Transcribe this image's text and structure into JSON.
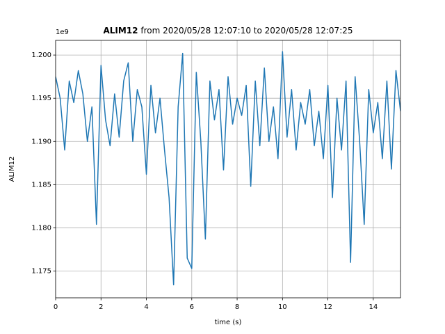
{
  "chart_data": {
    "type": "line",
    "title": {
      "name": "ALIM12",
      "range": "from 2020/05/28 12:07:10 to 2020/05/28 12:07:25"
    },
    "xlabel": "time (s)",
    "ylabel": "ALIM12",
    "y_offset_label": "1e9",
    "xlim": [
      0,
      15.2
    ],
    "ylim": [
      1.1719,
      1.2017
    ],
    "xticks": [
      0,
      2,
      4,
      6,
      8,
      10,
      12,
      14
    ],
    "yticks": [
      {
        "value": 1.175,
        "label": "1.175"
      },
      {
        "value": 1.18,
        "label": "1.180"
      },
      {
        "value": 1.185,
        "label": "1.185"
      },
      {
        "value": 1.19,
        "label": "1.190"
      },
      {
        "value": 1.195,
        "label": "1.195"
      },
      {
        "value": 1.2,
        "label": "1.200"
      }
    ],
    "grid": true,
    "x": [
      0,
      0.2,
      0.4,
      0.6,
      0.8,
      1.0,
      1.2,
      1.4,
      1.6,
      1.8,
      2.0,
      2.2,
      2.4,
      2.6,
      2.8,
      3.0,
      3.2,
      3.4,
      3.6,
      3.8,
      4.0,
      4.2,
      4.4,
      4.6,
      4.8,
      5.0,
      5.2,
      5.4,
      5.6,
      5.8,
      6.0,
      6.2,
      6.4,
      6.6,
      6.8,
      7.0,
      7.2,
      7.4,
      7.6,
      7.8,
      8.0,
      8.2,
      8.4,
      8.6,
      8.8,
      9.0,
      9.2,
      9.4,
      9.6,
      9.8,
      10.0,
      10.2,
      10.4,
      10.6,
      10.8,
      11.0,
      11.2,
      11.4,
      11.6,
      11.8,
      12.0,
      12.2,
      12.4,
      12.6,
      12.8,
      13.0,
      13.2,
      13.4,
      13.6,
      13.8,
      14.0,
      14.2,
      14.4,
      14.6,
      14.8,
      15.0,
      15.2
    ],
    "series": [
      {
        "name": "ALIM12",
        "color": "#1f77b4",
        "values": [
          1.1975,
          1.195,
          1.189,
          1.197,
          1.1945,
          1.1982,
          1.1955,
          1.19,
          1.194,
          1.1804,
          1.1988,
          1.1925,
          1.1895,
          1.1955,
          1.1905,
          1.197,
          1.1991,
          1.19,
          1.196,
          1.194,
          1.1862,
          1.1965,
          1.191,
          1.195,
          1.189,
          1.1835,
          1.1734,
          1.194,
          1.2002,
          1.1765,
          1.1753,
          1.198,
          1.19,
          1.1787,
          1.197,
          1.1925,
          1.196,
          1.1867,
          1.1975,
          1.192,
          1.195,
          1.193,
          1.1965,
          1.1848,
          1.197,
          1.1895,
          1.1985,
          1.19,
          1.194,
          1.188,
          1.2004,
          1.1905,
          1.196,
          1.189,
          1.1945,
          1.192,
          1.196,
          1.1895,
          1.1935,
          1.188,
          1.1965,
          1.1835,
          1.195,
          1.189,
          1.197,
          1.176,
          1.1975,
          1.19,
          1.1804,
          1.196,
          1.191,
          1.1945,
          1.188,
          1.197,
          1.1868,
          1.1982,
          1.1935
        ]
      }
    ]
  }
}
